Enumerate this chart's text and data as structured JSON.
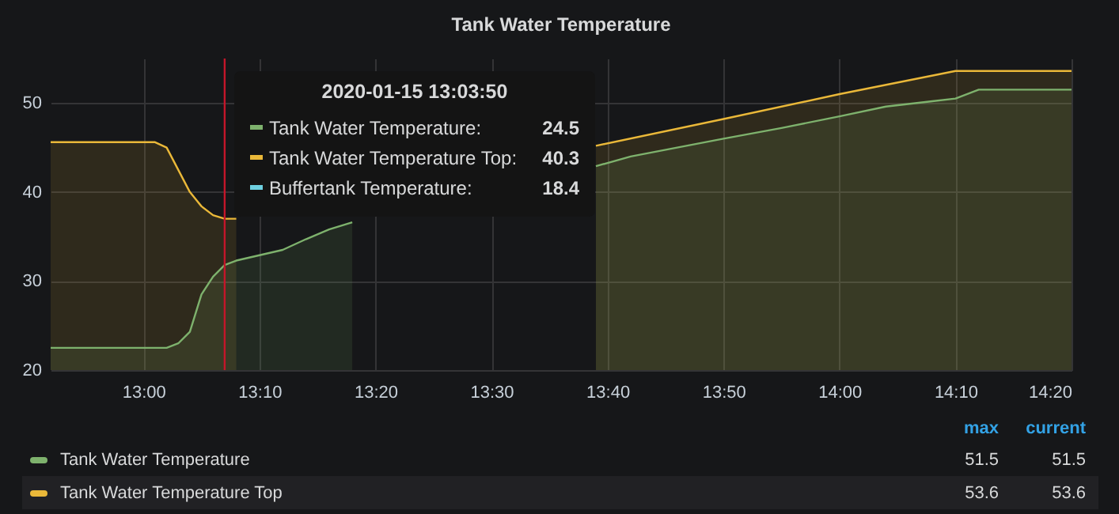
{
  "chart_data": {
    "type": "area",
    "title": "Tank Water Temperature",
    "xlim": [
      "2020-01-15T12:52",
      "2020-01-15T14:20"
    ],
    "xticks": [
      {
        "value": "2020-01-15T13:00",
        "label": "13:00"
      },
      {
        "value": "2020-01-15T13:10",
        "label": "13:10"
      },
      {
        "value": "2020-01-15T13:20",
        "label": "13:20"
      },
      {
        "value": "2020-01-15T13:30",
        "label": "13:30"
      },
      {
        "value": "2020-01-15T13:40",
        "label": "13:40"
      },
      {
        "value": "2020-01-15T13:50",
        "label": "13:50"
      },
      {
        "value": "2020-01-15T14:00",
        "label": "14:00"
      },
      {
        "value": "2020-01-15T14:10",
        "label": "14:10"
      },
      {
        "value": "2020-01-15T14:20",
        "label": "14:20"
      }
    ],
    "ylim": [
      20,
      55
    ],
    "yticks": [
      20,
      30,
      40,
      50
    ],
    "grid": true,
    "legend": "bottom",
    "series": [
      {
        "name": "Tank Water Temperature Top",
        "color": "#eab839",
        "x": [
          "2020-01-15T12:52",
          "2020-01-15T13:01",
          "2020-01-15T13:02",
          "2020-01-15T13:04",
          "2020-01-15T13:05",
          "2020-01-15T13:06",
          "2020-01-15T13:07",
          "2020-01-15T13:08",
          "2020-01-15T13:20",
          "2020-01-15T13:39",
          "2020-01-15T13:50",
          "2020-01-15T14:00",
          "2020-01-15T14:10",
          "2020-01-15T14:20"
        ],
        "values": [
          45.6,
          45.6,
          45.0,
          40.0,
          38.4,
          37.4,
          37.0,
          37.0,
          null,
          45.2,
          48.2,
          51.0,
          53.6,
          53.6
        ]
      },
      {
        "name": "Tank Water Temperature",
        "color": "#7eb26d",
        "x": [
          "2020-01-15T12:52",
          "2020-01-15T13:02",
          "2020-01-15T13:03",
          "2020-01-15T13:04",
          "2020-01-15T13:05",
          "2020-01-15T13:06",
          "2020-01-15T13:07",
          "2020-01-15T13:08",
          "2020-01-15T13:10",
          "2020-01-15T13:12",
          "2020-01-15T13:14",
          "2020-01-15T13:16",
          "2020-01-15T13:18",
          "2020-01-15T13:28",
          "2020-01-15T13:39",
          "2020-01-15T13:42",
          "2020-01-15T13:46",
          "2020-01-15T13:50",
          "2020-01-15T13:55",
          "2020-01-15T14:00",
          "2020-01-15T14:04",
          "2020-01-15T14:08",
          "2020-01-15T14:10",
          "2020-01-15T14:12",
          "2020-01-15T14:20"
        ],
        "values": [
          22.5,
          22.5,
          23.0,
          24.3,
          28.5,
          30.5,
          31.8,
          32.3,
          32.9,
          33.5,
          34.7,
          35.8,
          36.6,
          null,
          42.9,
          44.0,
          45.0,
          46.0,
          47.2,
          48.5,
          49.6,
          50.2,
          50.5,
          51.5,
          51.5
        ]
      }
    ],
    "ref_lines": [
      {
        "axis": "x",
        "value": "2020-01-15T13:07",
        "color": "#c4162a"
      }
    ],
    "annotations": [
      "2020-01-15 13:03:50",
      "Tank Water Temperature:",
      "24.5",
      "Tank Water Temperature Top:",
      "40.3",
      "Buffertank Temperature:",
      "18.4",
      "max",
      "current",
      "51.5",
      "51.5",
      "53.6",
      "53.6"
    ]
  }
}
